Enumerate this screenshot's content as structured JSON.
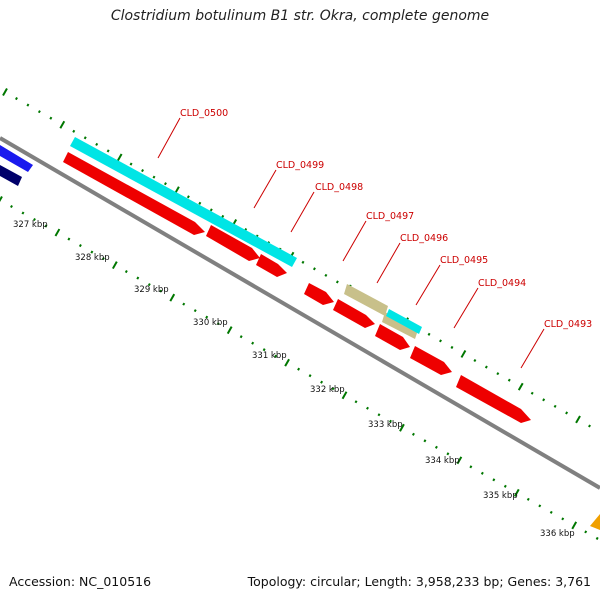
{
  "title": "Clostridium botulinum B1 str. Okra, complete genome",
  "footer": {
    "accession": "Accession: NC_010516",
    "info": "Topology: circular; Length: 3,958,233 bp; Genes: 3,761"
  },
  "ticks": [
    "327 kbp",
    "328 kbp",
    "329 kbp",
    "330 kbp",
    "331 kbp",
    "332 kbp",
    "333 kbp",
    "334 kbp",
    "335 kbp",
    "336 kbp"
  ],
  "gene_labels": [
    "CLD_0500",
    "CLD_0499",
    "CLD_0498",
    "CLD_0497",
    "CLD_0496",
    "CLD_0495",
    "CLD_0494",
    "CLD_0493"
  ],
  "colors": {
    "cds": "#ee0000",
    "trna": "#00e5e5",
    "misc": "#c8c08a",
    "blue": "#1a1aee",
    "navy": "#00006a",
    "orange": "#f0a000",
    "backbone": "#808080",
    "tick": "#007700"
  }
}
